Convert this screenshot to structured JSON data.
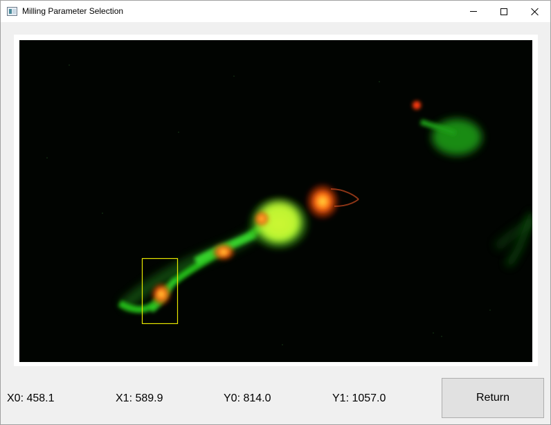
{
  "window": {
    "title": "Milling Parameter Selection",
    "icon": "app-window-icon"
  },
  "titlebar_buttons": {
    "minimize_icon": "minimize-icon",
    "maximize_icon": "maximize-icon",
    "close_icon": "close-icon"
  },
  "image": {
    "description_colors": {
      "background": "#000000",
      "fluorescence_green": "#2fd02a",
      "fluorescence_red": "#ff3a10",
      "selection_box": "#e8e800"
    }
  },
  "coords": {
    "x0": "X0: 458.1",
    "x1": "X1: 589.9",
    "y0": "Y0: 814.0",
    "y1": "Y1: 1057.0"
  },
  "actions": {
    "return_label": "Return"
  }
}
